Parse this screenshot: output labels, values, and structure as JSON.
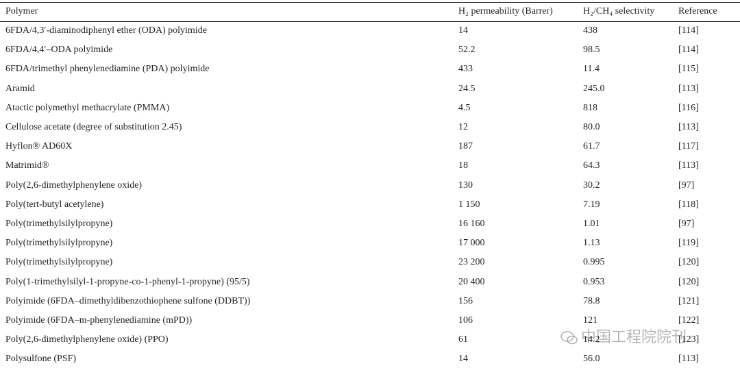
{
  "table": {
    "header": [
      "Polymer",
      "H₂ permeability (Barrer)",
      "H₂/CH₄ selectivity",
      "Reference"
    ],
    "rows": [
      [
        "6FDA/4,3′-diaminodiphenyl ether (ODA) polyimide",
        "14",
        "438",
        "[114]"
      ],
      [
        "6FDA/4,4′–ODA polyimide",
        "52.2",
        "98.5",
        "[114]"
      ],
      [
        "6FDA/trimethyl phenylenediamine (PDA) polyimide",
        "433",
        "11.4",
        "[115]"
      ],
      [
        "Aramid",
        "24.5",
        "245.0",
        "[113]"
      ],
      [
        "Atactic polymethyl methacrylate (PMMA)",
        "4.5",
        "818",
        "[116]"
      ],
      [
        "Cellulose acetate (degree of substitution 2.45)",
        "12",
        "80.0",
        "[113]"
      ],
      [
        "Hyflon® AD60X",
        "187",
        "61.7",
        "[117]"
      ],
      [
        "Matrimid®",
        "18",
        "64.3",
        "[113]"
      ],
      [
        "Poly(2,6-dimethylphenylene oxide)",
        "130",
        "30.2",
        "[97]"
      ],
      [
        "Poly(tert-butyl acetylene)",
        "1 150",
        "7.19",
        "[118]"
      ],
      [
        "Poly(trimethylsilylpropyne)",
        "16 160",
        "1.01",
        "[97]"
      ],
      [
        "Poly(trimethylsilylpropyne)",
        "17 000",
        "1.13",
        "[119]"
      ],
      [
        "Poly(trimethylsilylpropyne)",
        "23 200",
        "0.995",
        "[120]"
      ],
      [
        "Poly(1-trimethylsilyl-1-propyne-co-1-phenyl-1-propyne) (95/5)",
        "20 400",
        "0.953",
        "[120]"
      ],
      [
        "Polyimide (6FDA–dimethyldibenzothiophene sulfone (DDBT))",
        "156",
        "78.8",
        "[121]"
      ],
      [
        "Polyimide (6FDA–m-phenylenediamine (mPD))",
        "106",
        "121",
        "[122]"
      ],
      [
        "Poly(2,6-dimethylphenylene oxide) (PPO)",
        "61",
        "14.2",
        "[123]"
      ],
      [
        "Polysulfone (PSF)",
        "14",
        "56.0",
        "[113]"
      ]
    ]
  },
  "watermark": "中国工程院院刊"
}
